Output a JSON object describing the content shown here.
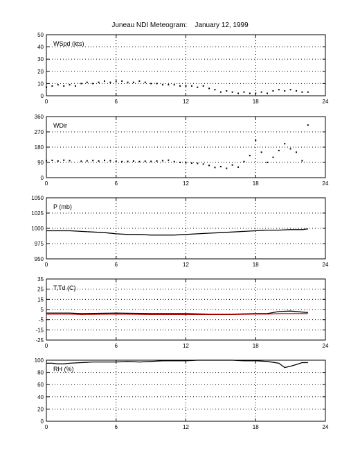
{
  "title": "Juneau NDI Meteogram:    January 12, 1999",
  "chart_data": [
    {
      "type": "scatter",
      "label": "WSpd (kts)",
      "xlim": [
        0,
        24
      ],
      "xticks": [
        0,
        6,
        12,
        18,
        24
      ],
      "ylim": [
        0,
        50
      ],
      "yticks": [
        0,
        10,
        20,
        30,
        40,
        50
      ],
      "color": "#000000",
      "points": [
        [
          0,
          7
        ],
        [
          0.5,
          8
        ],
        [
          1,
          9
        ],
        [
          1.5,
          8
        ],
        [
          2,
          9
        ],
        [
          2.5,
          8
        ],
        [
          3,
          10
        ],
        [
          3.5,
          11
        ],
        [
          4,
          10
        ],
        [
          4.5,
          11
        ],
        [
          5,
          12
        ],
        [
          5.5,
          11
        ],
        [
          6,
          12
        ],
        [
          6.5,
          12
        ],
        [
          7,
          11
        ],
        [
          7.5,
          11
        ],
        [
          8,
          12
        ],
        [
          8.5,
          11
        ],
        [
          9,
          10
        ],
        [
          9.5,
          10
        ],
        [
          10,
          9
        ],
        [
          10.5,
          9
        ],
        [
          11,
          9
        ],
        [
          11.5,
          8
        ],
        [
          12,
          8
        ],
        [
          12.5,
          8
        ],
        [
          13,
          7
        ],
        [
          13.5,
          8
        ],
        [
          14,
          6
        ],
        [
          14.5,
          5
        ],
        [
          15,
          3
        ],
        [
          15.5,
          4
        ],
        [
          16,
          3
        ],
        [
          16.5,
          2
        ],
        [
          17,
          3
        ],
        [
          17.5,
          2
        ],
        [
          18,
          2
        ],
        [
          18.5,
          3
        ],
        [
          19,
          2
        ],
        [
          19.5,
          4
        ],
        [
          20,
          5
        ],
        [
          20.5,
          4
        ],
        [
          21,
          5
        ],
        [
          21.5,
          4
        ],
        [
          22,
          3
        ],
        [
          22.5,
          3
        ]
      ]
    },
    {
      "type": "scatter",
      "label": "WDir",
      "xlim": [
        0,
        24
      ],
      "xticks": [
        0,
        6,
        12,
        18,
        24
      ],
      "ylim": [
        0,
        360
      ],
      "yticks": [
        0,
        90,
        180,
        270,
        360
      ],
      "color": "#000000",
      "points": [
        [
          0,
          100
        ],
        [
          0.5,
          102
        ],
        [
          1,
          98
        ],
        [
          1.5,
          103
        ],
        [
          2,
          100
        ],
        [
          3,
          97
        ],
        [
          3.5,
          99
        ],
        [
          4,
          101
        ],
        [
          4.5,
          98
        ],
        [
          5,
          102
        ],
        [
          5.5,
          100
        ],
        [
          6,
          97
        ],
        [
          6.5,
          95
        ],
        [
          7,
          96
        ],
        [
          7.5,
          98
        ],
        [
          8,
          95
        ],
        [
          8.5,
          97
        ],
        [
          9,
          96
        ],
        [
          9.5,
          98
        ],
        [
          10,
          100
        ],
        [
          10.5,
          103
        ],
        [
          11,
          95
        ],
        [
          11.5,
          90
        ],
        [
          12,
          88
        ],
        [
          12.5,
          86
        ],
        [
          13,
          84
        ],
        [
          13.5,
          80
        ],
        [
          14,
          72
        ],
        [
          14.5,
          60
        ],
        [
          15,
          65
        ],
        [
          15.5,
          55
        ],
        [
          16,
          75
        ],
        [
          16.5,
          62
        ],
        [
          17,
          95
        ],
        [
          17.5,
          130
        ],
        [
          18,
          220
        ],
        [
          18.5,
          150
        ],
        [
          19,
          90
        ],
        [
          19.5,
          120
        ],
        [
          20,
          160
        ],
        [
          20.5,
          200
        ],
        [
          21,
          170
        ],
        [
          21.5,
          150
        ],
        [
          22,
          100
        ],
        [
          22.5,
          310
        ]
      ]
    },
    {
      "type": "line",
      "label": "P (mb)",
      "xlim": [
        0,
        24
      ],
      "xticks": [
        0,
        6,
        12,
        18,
        24
      ],
      "ylim": [
        950,
        1050
      ],
      "yticks": [
        950,
        975,
        1000,
        1025,
        1050
      ],
      "color": "#000000",
      "points": [
        [
          0,
          996
        ],
        [
          1,
          996
        ],
        [
          2,
          996
        ],
        [
          3,
          995
        ],
        [
          4,
          994
        ],
        [
          5,
          993
        ],
        [
          6,
          991
        ],
        [
          7,
          990
        ],
        [
          8,
          990
        ],
        [
          9,
          989
        ],
        [
          10,
          989
        ],
        [
          11,
          989
        ],
        [
          12,
          990
        ],
        [
          13,
          991
        ],
        [
          14,
          992
        ],
        [
          15,
          993
        ],
        [
          16,
          994
        ],
        [
          17,
          995
        ],
        [
          18,
          996
        ],
        [
          19,
          997
        ],
        [
          20,
          997
        ],
        [
          21,
          998
        ],
        [
          22,
          998
        ],
        [
          22.5,
          999
        ]
      ]
    },
    {
      "type": "line",
      "label": "T,Td (C)",
      "xlim": [
        0,
        24
      ],
      "xticks": [
        0,
        6,
        12,
        18,
        24
      ],
      "ylim": [
        -25,
        35
      ],
      "yticks": [
        -25,
        -15,
        -5,
        5,
        15,
        25,
        35
      ],
      "series": [
        {
          "color": "#000000",
          "points": [
            [
              0,
              1.5
            ],
            [
              2,
              1.5
            ],
            [
              3,
              1
            ],
            [
              6,
              1.5
            ],
            [
              9,
              1
            ],
            [
              12,
              1
            ],
            [
              14,
              0.5
            ],
            [
              16,
              0.5
            ],
            [
              18,
              1
            ],
            [
              19,
              1
            ],
            [
              20,
              3
            ],
            [
              21,
              3.5
            ],
            [
              22,
              2.5
            ],
            [
              22.5,
              2
            ]
          ]
        },
        {
          "color": "#cc0000",
          "points": [
            [
              0,
              0.5
            ],
            [
              2,
              0.5
            ],
            [
              3,
              0
            ],
            [
              6,
              0.5
            ],
            [
              9,
              0
            ],
            [
              12,
              0
            ],
            [
              14,
              0
            ],
            [
              16,
              0
            ],
            [
              18,
              0.5
            ],
            [
              19,
              0.5
            ],
            [
              20,
              1
            ],
            [
              21,
              1
            ],
            [
              22,
              1
            ],
            [
              22.5,
              1
            ]
          ]
        }
      ]
    },
    {
      "type": "line",
      "label": "RH (%)",
      "xlim": [
        0,
        24
      ],
      "xticks": [
        0,
        6,
        12,
        18,
        24
      ],
      "ylim": [
        0,
        100
      ],
      "yticks": [
        0,
        20,
        40,
        60,
        80,
        100
      ],
      "color": "#000000",
      "points": [
        [
          0,
          95
        ],
        [
          0.5,
          95
        ],
        [
          1,
          94
        ],
        [
          1.5,
          94
        ],
        [
          2,
          95
        ],
        [
          3,
          96
        ],
        [
          4,
          97
        ],
        [
          5,
          97
        ],
        [
          6,
          97
        ],
        [
          7,
          98
        ],
        [
          8,
          97
        ],
        [
          9,
          98
        ],
        [
          10,
          99
        ],
        [
          11,
          99
        ],
        [
          12,
          99
        ],
        [
          13,
          100
        ],
        [
          14,
          100
        ],
        [
          15,
          100
        ],
        [
          16,
          100
        ],
        [
          17,
          99
        ],
        [
          18,
          99
        ],
        [
          19,
          98
        ],
        [
          20,
          95
        ],
        [
          20.5,
          88
        ],
        [
          21,
          90
        ],
        [
          21.5,
          93
        ],
        [
          22,
          96
        ],
        [
          22.5,
          96
        ]
      ]
    }
  ]
}
